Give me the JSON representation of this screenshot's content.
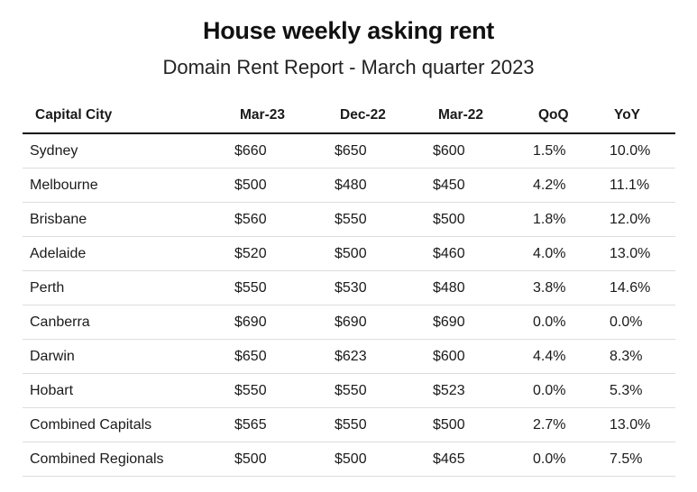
{
  "title": "House weekly asking rent",
  "subtitle": "Domain Rent Report - March quarter 2023",
  "columns": [
    "Capital City",
    "Mar-23",
    "Dec-22",
    "Mar-22",
    "QoQ",
    "YoY"
  ],
  "rows": [
    [
      "Sydney",
      "$660",
      "$650",
      "$600",
      "1.5%",
      "10.0%"
    ],
    [
      "Melbourne",
      "$500",
      "$480",
      "$450",
      "4.2%",
      "11.1%"
    ],
    [
      "Brisbane",
      "$560",
      "$550",
      "$500",
      "1.8%",
      "12.0%"
    ],
    [
      "Adelaide",
      "$520",
      "$500",
      "$460",
      "4.0%",
      "13.0%"
    ],
    [
      "Perth",
      "$550",
      "$530",
      "$480",
      "3.8%",
      "14.6%"
    ],
    [
      "Canberra",
      "$690",
      "$690",
      "$690",
      "0.0%",
      "0.0%"
    ],
    [
      "Darwin",
      "$650",
      "$623",
      "$600",
      "4.4%",
      "8.3%"
    ],
    [
      "Hobart",
      "$550",
      "$550",
      "$523",
      "0.0%",
      "5.3%"
    ],
    [
      "Combined Capitals",
      "$565",
      "$550",
      "$500",
      "2.7%",
      "13.0%"
    ],
    [
      "Combined Regionals",
      "$500",
      "$500",
      "$465",
      "0.0%",
      "7.5%"
    ]
  ]
}
